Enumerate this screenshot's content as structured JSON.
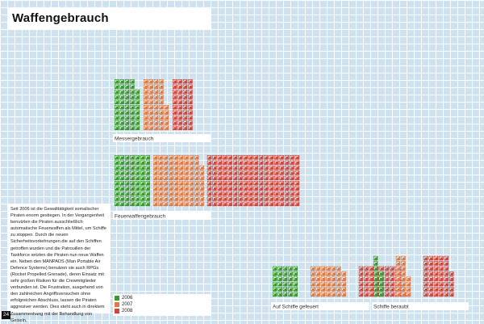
{
  "title": "Waffengebrauch",
  "page_number": "24",
  "body_text": "Seit 2006 ist die Gewalttätigkeit somalischer Piraten enorm gestiegen. In der Vergangenheit benutzten die Piraten ausschließlich automatische Feuerwaffen als Mittel, um Schiffe zu stoppen. Durch die neuen Sicherheitsvorkehrungen die auf den Schiffen getroffen wurden und die Patrouillen der Taskforce setzten die Piraten nun neue Waffen ein. Neben den MANPADS (Man Portable Air Defence Systems) benutzen sie auch RPGs (Rocket Propelled Grenade), deren Einsatz mit sehr großen Risiken für die Crewmitglieder verbunden ist. Die Frustration, ausgehend von den zahlreichen Angriffsversuchen ohne erfolgreichen Abschluss, lassen die Piraten aggresiver werden. Dies steht auch in direktem Zusammenhang mit der Behandlung von Geiseln.",
  "colors": {
    "2006": "#3a9a2e",
    "2007": "#e07a45",
    "2008": "#d2463c"
  },
  "legend": [
    "2006",
    "2007",
    "2008"
  ],
  "chart_data": [
    {
      "type": "bar",
      "title": "Messergebrauch",
      "categories": [
        "2006",
        "2007",
        "2008"
      ],
      "values": [
        48,
        45,
        40
      ]
    },
    {
      "type": "bar",
      "title": "Feuerwaffengebrauch",
      "categories": [
        "2006",
        "2007",
        "2008"
      ],
      "values": [
        70,
        98,
        180
      ]
    },
    {
      "type": "bar",
      "title": "Auf Schiffe gefeuert",
      "categories": [
        "2006",
        "2007",
        "2008"
      ],
      "values": [
        30,
        41,
        55
      ]
    },
    {
      "type": "bar",
      "title": "Schiffe beraubt",
      "categories": [
        "2006",
        "2007",
        "2008"
      ],
      "values": [
        13,
        20,
        45
      ]
    }
  ]
}
